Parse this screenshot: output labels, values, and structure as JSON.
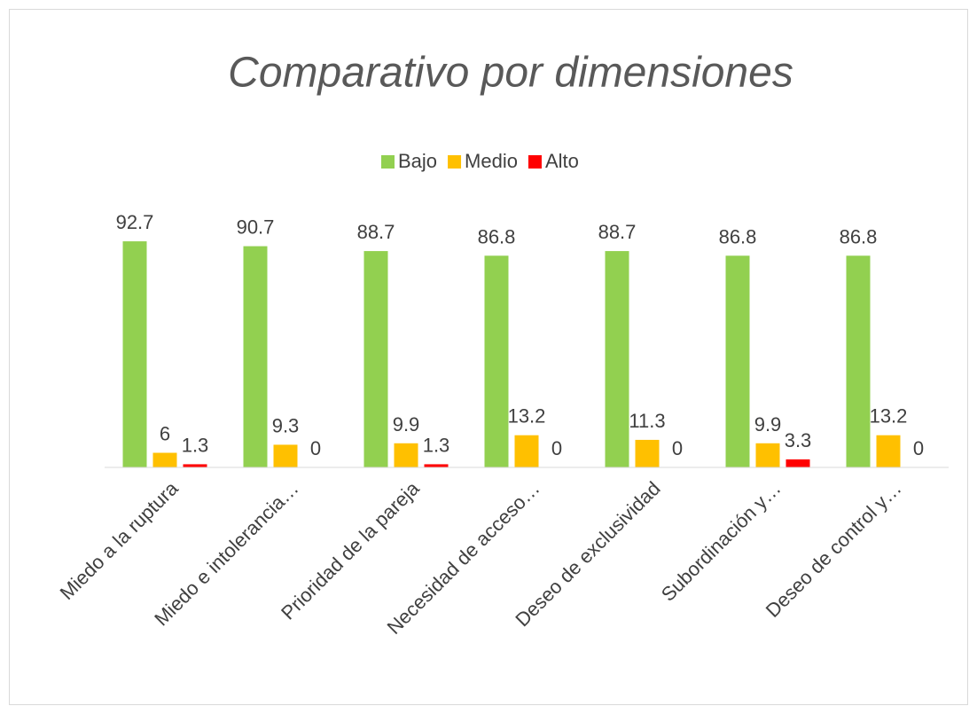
{
  "chart_data": {
    "type": "bar",
    "title": "Comparativo por dimensiones",
    "categories": [
      "Miedo a la ruptura",
      "Miedo e intolerancia…",
      "Prioridad de la pareja",
      "Necesidad de acceso…",
      "Deseo de exclusividad",
      "Subordinación y…",
      "Deseo de control y…"
    ],
    "series": [
      {
        "name": "Bajo",
        "color": "#92d050",
        "values": [
          92.7,
          90.7,
          88.7,
          86.8,
          88.7,
          86.8,
          86.8
        ]
      },
      {
        "name": "Medio",
        "color": "#ffc000",
        "values": [
          6,
          9.3,
          9.9,
          13.2,
          11.3,
          9.9,
          13.2
        ]
      },
      {
        "name": "Alto",
        "color": "#ff0000",
        "values": [
          1.3,
          0,
          1.3,
          0,
          0,
          3.3,
          0
        ]
      }
    ],
    "ylim": [
      0,
      100
    ],
    "legend": "top"
  }
}
